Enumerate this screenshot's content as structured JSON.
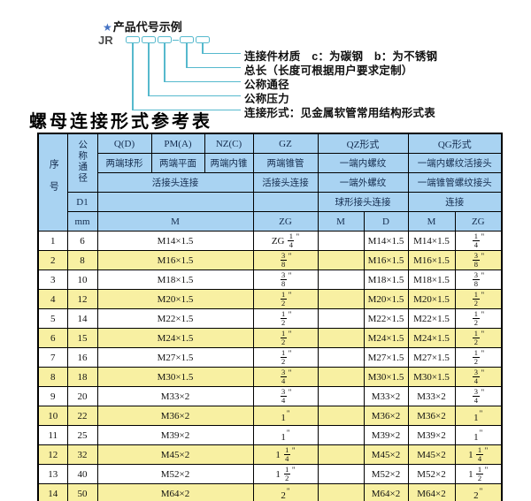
{
  "diagram": {
    "star_icon": "★",
    "heading": "产品代号示例",
    "code_prefix": "JR",
    "labels": [
      "连接件材质　c：为碳钢　b：为不锈钢",
      "总长（长度可根据用户要求定制）",
      "公称通径",
      "公称压力",
      "连接形式：见金属软管常用结构形式表"
    ],
    "accent_color": "#56b9cd",
    "star_color": "#4472c4"
  },
  "table": {
    "title": "螺母连接形式参考表",
    "colors": {
      "header_bg": "#a9d3f2",
      "alt_row_bg": "#f8f0a2",
      "border": "#000000"
    },
    "header": {
      "seq": "序号",
      "dn": "公称通径",
      "d1": "D1",
      "mm": "mm",
      "groups": [
        {
          "code": "Q(D)",
          "ends": "两端球形"
        },
        {
          "code": "PM(A)",
          "ends": "两端平面"
        },
        {
          "code": "NZ(C)",
          "ends": "两端内锥"
        },
        {
          "code": "GZ",
          "ends": "两端锥管",
          "row3": "活接头连接",
          "unit": "ZG"
        },
        {
          "code": "QZ形式",
          "ends": "一端内螺纹",
          "row3": "一端外螺纹",
          "row4": "球形接头连接",
          "unit_a": "M",
          "unit_b": "D"
        },
        {
          "code": "QG形式",
          "ends": "一端内螺纹活接头",
          "row3": "一端锥管螺纹接头",
          "row4": "连接",
          "unit_a": "M",
          "unit_b": "ZG"
        }
      ],
      "qpn_row3": "活接头连接",
      "qpn_unit": "M"
    },
    "rows": [
      [
        "1",
        "6",
        "M14×1.5",
        "ZG 1/4\"",
        "",
        "M14×1.5",
        "M14×1.5",
        "1/4\""
      ],
      [
        "2",
        "8",
        "M16×1.5",
        "3/8\"",
        "",
        "M16×1.5",
        "M16×1.5",
        "3/8\""
      ],
      [
        "3",
        "10",
        "M18×1.5",
        "3/8\"",
        "",
        "M18×1.5",
        "M18×1.5",
        "3/8\""
      ],
      [
        "4",
        "12",
        "M20×1.5",
        "1/2\"",
        "",
        "M20×1.5",
        "M20×1.5",
        "1/2\""
      ],
      [
        "5",
        "14",
        "M22×1.5",
        "1/2\"",
        "",
        "M22×1.5",
        "M22×1.5",
        "1/2\""
      ],
      [
        "6",
        "15",
        "M24×1.5",
        "1/2\"",
        "",
        "M24×1.5",
        "M24×1.5",
        "1/2\""
      ],
      [
        "7",
        "16",
        "M27×1.5",
        "1/2\"",
        "",
        "M27×1.5",
        "M27×1.5",
        "1/2\""
      ],
      [
        "8",
        "18",
        "M30×1.5",
        "3/4\"",
        "",
        "M30×1.5",
        "M30×1.5",
        "3/4\""
      ],
      [
        "9",
        "20",
        "M33×2",
        "3/4\"",
        "",
        "M33×2",
        "M33×2",
        "3/4\""
      ],
      [
        "10",
        "22",
        "M36×2",
        "1\"",
        "",
        "M36×2",
        "M36×2",
        "1\""
      ],
      [
        "11",
        "25",
        "M39×2",
        "1\"",
        "",
        "M39×2",
        "M39×2",
        "1\""
      ],
      [
        "12",
        "32",
        "M45×2",
        "1 1/4\"",
        "",
        "M45×2",
        "M45×2",
        "1 1/4\""
      ],
      [
        "13",
        "40",
        "M52×2",
        "1 1/2\"",
        "",
        "M52×2",
        "M52×2",
        "1 1/2\""
      ],
      [
        "14",
        "50",
        "M64×2",
        "2\"",
        "",
        "M64×2",
        "M64×2",
        "2\""
      ]
    ]
  }
}
